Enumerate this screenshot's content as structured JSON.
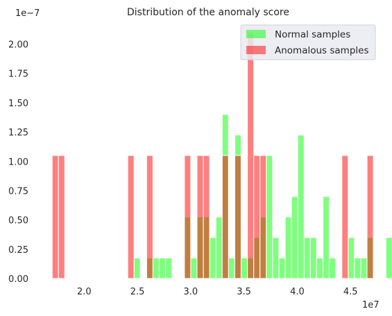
{
  "chart_data": {
    "type": "bar",
    "title": "Distribution of the anomaly score",
    "xlabel": "",
    "ylabel": "",
    "x_offset_label": "1e7",
    "y_offset_label": "1e−7",
    "xlim": [
      1.64,
      4.72
    ],
    "ylim": [
      0,
      2.24
    ],
    "xticks": [
      2.0,
      2.5,
      3.0,
      3.5,
      4.0,
      4.5
    ],
    "xtick_labels": [
      "2.0",
      "2.5",
      "3.0",
      "3.5",
      "4.0",
      "4.5"
    ],
    "yticks": [
      0.0,
      0.25,
      0.5,
      0.75,
      1.0,
      1.25,
      1.5,
      1.75,
      2.0
    ],
    "ytick_labels": [
      "0.00",
      "0.25",
      "0.50",
      "0.75",
      "1.00",
      "1.25",
      "1.50",
      "1.75",
      "2.00"
    ],
    "grid": false,
    "legend_position": "top-right",
    "bin_start": 1.7,
    "bin_width": 0.0591,
    "series": [
      {
        "name": "Normal samples",
        "color": "#00ff00",
        "values": [
          0,
          0,
          0,
          0,
          0,
          0,
          0,
          0,
          0,
          0,
          0,
          0,
          0,
          0.175,
          0,
          0.175,
          0.175,
          0.175,
          0.175,
          0,
          0,
          0.525,
          0.175,
          0.525,
          0.525,
          0.35,
          0.525,
          1.4,
          0.175,
          1.225,
          0.175,
          0.175,
          0.35,
          0.525,
          1.05,
          0.35,
          0.175,
          0.525,
          0.7,
          1.225,
          0.35,
          0.35,
          0.175,
          0.7,
          0.175,
          0,
          0,
          0.35,
          0.175,
          0.175,
          0.35,
          0,
          0,
          0.35,
          0.35,
          0.175
        ]
      },
      {
        "name": "Anomalous samples",
        "color": "#ff0000",
        "values": [
          1.05,
          1.05,
          0,
          0,
          0,
          0,
          0,
          0,
          0,
          0,
          0,
          0,
          1.05,
          0,
          0,
          1.05,
          0,
          0,
          0,
          0,
          0,
          1.05,
          0,
          1.05,
          1.05,
          0,
          0,
          1.05,
          0,
          1.05,
          0,
          2.1,
          1.05,
          1.05,
          0,
          0,
          0,
          0,
          0,
          0,
          0,
          0,
          0,
          0,
          0,
          0,
          1.05,
          0,
          0,
          0,
          1.05,
          0,
          0,
          0,
          0,
          1.05
        ]
      }
    ]
  }
}
